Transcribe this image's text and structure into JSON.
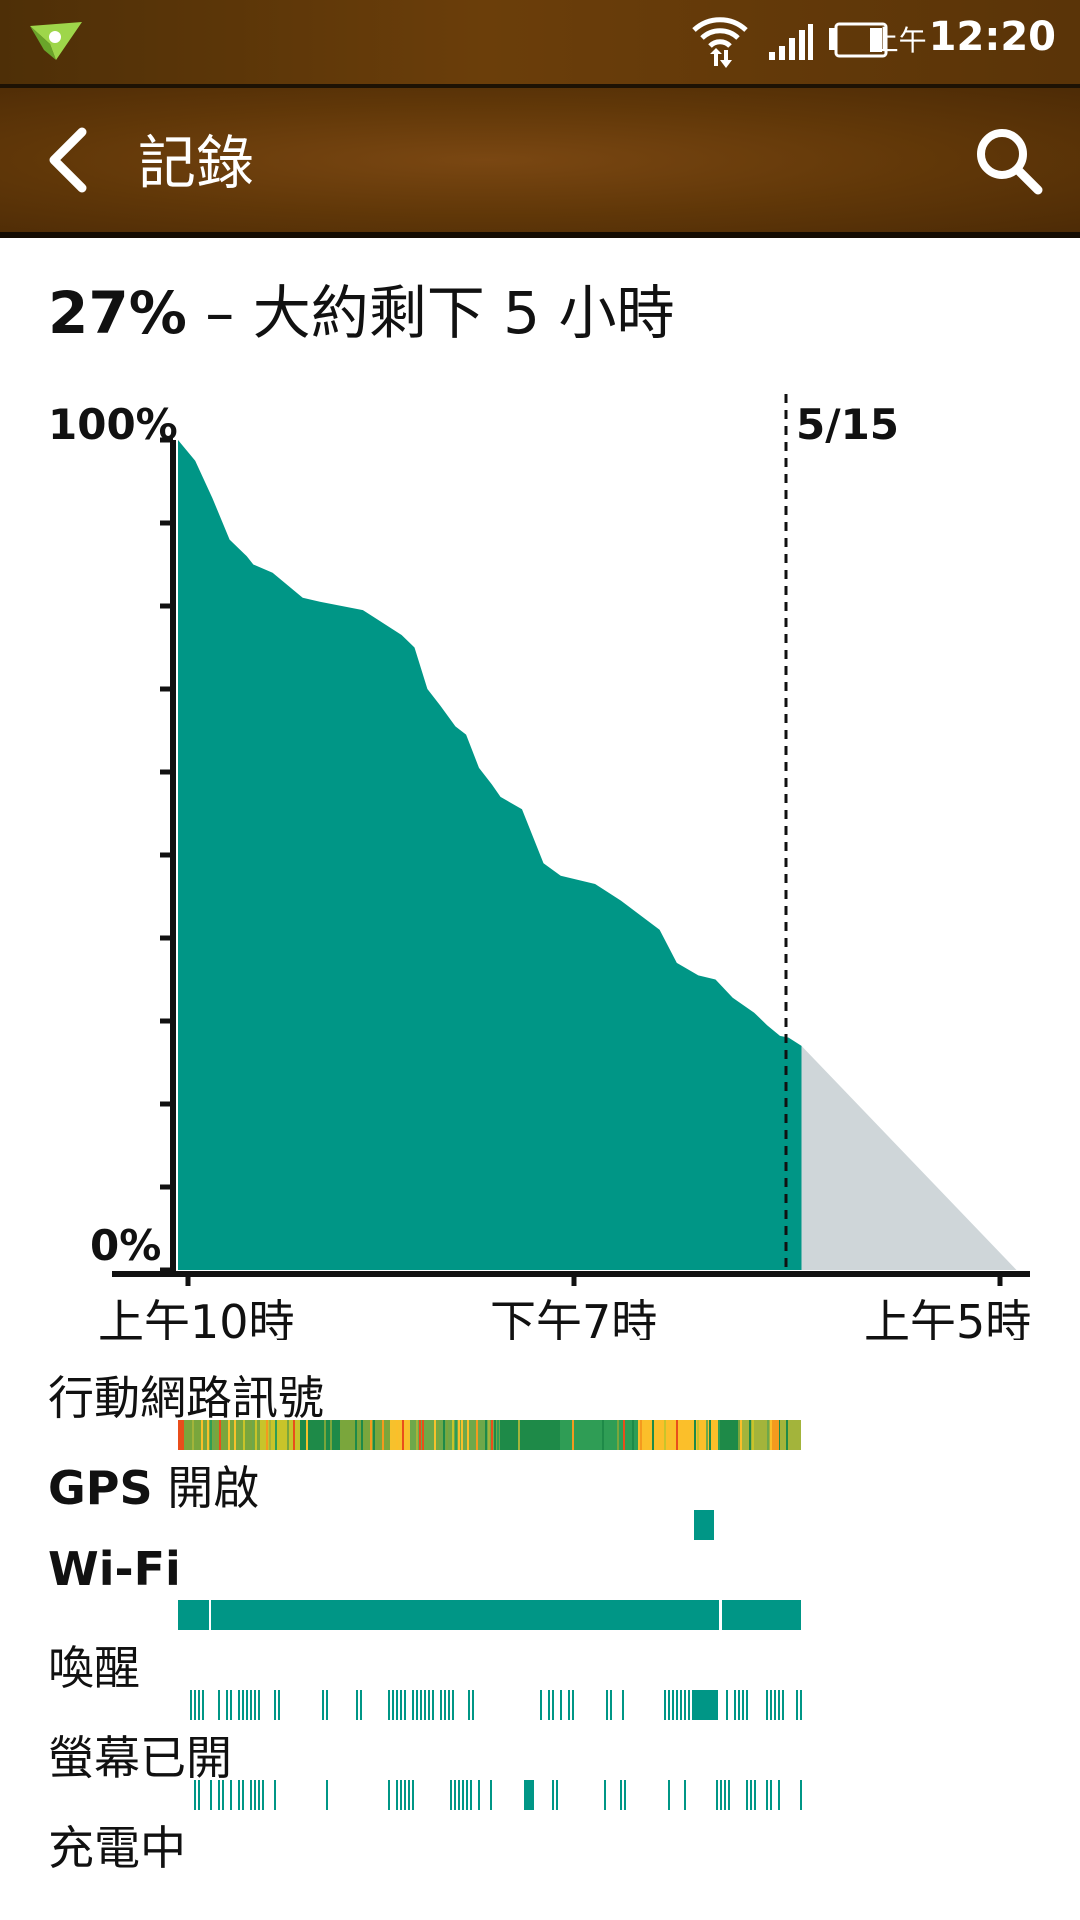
{
  "status_bar": {
    "time_period": "上午",
    "time": "12:20",
    "icons": [
      "notification-paper-plane-icon",
      "wifi-icon",
      "cell-signal-icon",
      "battery-icon"
    ]
  },
  "action_bar": {
    "back_icon": "chevron-left-icon",
    "title": "記錄",
    "search_icon": "search-icon"
  },
  "summary": {
    "percent": "27%",
    "estimate": " – 大約剩下 5 小時"
  },
  "chart_data": {
    "type": "area",
    "ylabel_top": "100%",
    "ylabel_bottom": "0%",
    "ylim": [
      0,
      100
    ],
    "date_marker": "5/15",
    "x_ticks": [
      "上午10時",
      "下午7時",
      "上午5時"
    ],
    "colors": {
      "fill": "#009686",
      "projection": "#cfd6d9",
      "axis": "#111111"
    },
    "series": [
      {
        "x_hours": [
          0,
          0.4,
          0.8,
          1.2,
          1.6,
          1.75,
          2.2,
          2.9,
          3.3,
          4.3,
          5.2,
          5.5,
          5.8,
          6.1,
          6.45,
          6.7,
          7.0,
          7.3,
          7.5,
          8.0,
          8.5,
          8.9,
          9.7,
          10.3,
          11.2,
          11.6,
          12.1,
          12.5,
          12.9,
          13.4,
          13.7,
          14.0,
          14.2,
          14.5
        ],
        "values": [
          100,
          97.5,
          93,
          88,
          86,
          85,
          84,
          81,
          80.5,
          79.5,
          76.5,
          75,
          70,
          68,
          65.5,
          64.5,
          60.5,
          58.5,
          57,
          55.5,
          49,
          47.5,
          46.5,
          44.5,
          41,
          37,
          35.5,
          35,
          32.8,
          31,
          29.5,
          28.2,
          28,
          27
        ]
      }
    ],
    "projection": {
      "from_hour": 14.5,
      "from_value": 27,
      "to_hour": 19.5,
      "to_value": 0
    }
  },
  "rows": [
    {
      "label": "行動網路訊號"
    },
    {
      "label_bold": "GPS",
      "label": " 開啟"
    },
    {
      "label_bold": "Wi-Fi",
      "label": ""
    },
    {
      "label": "喚醒"
    },
    {
      "label": "螢幕已開"
    },
    {
      "label": "充電中"
    }
  ]
}
